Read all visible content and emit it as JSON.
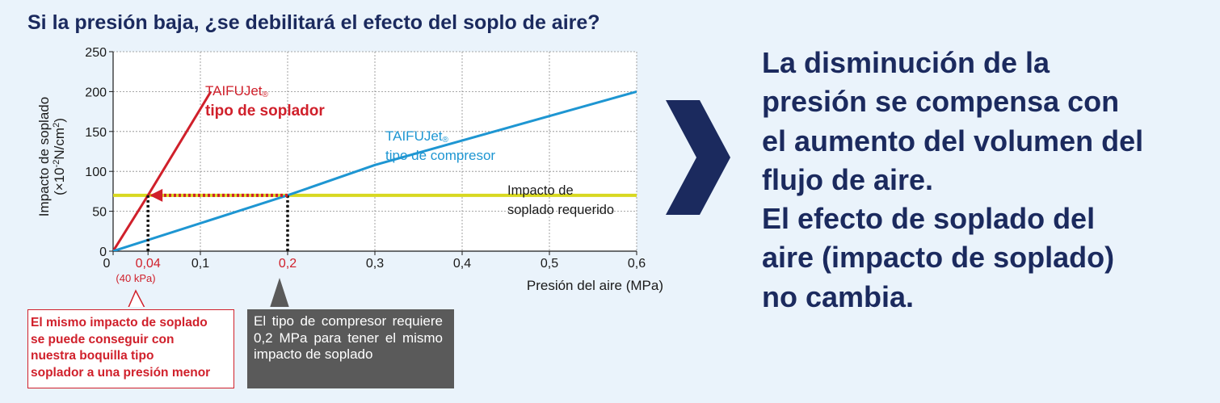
{
  "title": "Si la presión baja, ¿se debilitará el efecto del soplo de aire?",
  "chart_data": {
    "type": "line",
    "xlabel": "Presión del aire (MPa)",
    "ylabel": "Impacto de soplado",
    "ylabel_unit": "(×10⁻²N/cm²)",
    "xlim": [
      0,
      0.6
    ],
    "ylim": [
      0,
      250
    ],
    "x_ticks": [
      "0",
      "0,04",
      "0,1",
      "0,2",
      "0,3",
      "0,4",
      "0,5",
      "0,6"
    ],
    "y_ticks": [
      "0",
      "50",
      "100",
      "150",
      "200",
      "250"
    ],
    "grid": true,
    "series": [
      {
        "name": "TAIFUJet® tipo de soplador",
        "color": "#d0202b",
        "x": [
          0,
          0.04,
          0.112
        ],
        "y": [
          0,
          70,
          200
        ]
      },
      {
        "name": "TAIFUJet® tipo de compresor",
        "color": "#1e96d2",
        "x": [
          0,
          0.2,
          0.3,
          0.6
        ],
        "y": [
          0,
          70,
          108,
          200
        ]
      }
    ],
    "reference_line": {
      "label": "Impacto de soplado requerido",
      "y": 70,
      "color": "#d8d820"
    },
    "annotations": {
      "blower_brand": "TAIFUJet",
      "blower_type": "tipo de soplador",
      "compressor_brand": "TAIFUJet",
      "compressor_type": "tipo de compresor",
      "registered": "®",
      "required_line1": "Impacto de",
      "required_line2": "soplado requerido",
      "kpa_label": "(40 kPa)",
      "ylabel_line1": "Impacto de soplado",
      "ylabel_line2_pre": "(×10",
      "ylabel_line2_sup": "-2",
      "ylabel_line2_mid": "N/cm",
      "ylabel_line2_sup2": "2",
      "ylabel_line2_post": ")"
    }
  },
  "callouts": {
    "blower_lines": [
      "El mismo impacto de soplado",
      "se puede conseguir con",
      "nuestra boquilla tipo",
      "soplador a una presión menor"
    ],
    "compressor_text": "El tipo de compresor requiere 0,2 MPa para tener el mismo impacto de soplado"
  },
  "conclusion": {
    "lines": [
      "La disminución de la",
      "presión se compensa con",
      "el aumento del volumen del",
      "flujo de aire.",
      "El efecto de soplado del",
      "aire (impacto de soplado)",
      "no cambia."
    ]
  },
  "colors": {
    "navy": "#1b2a5e",
    "red": "#d0202b",
    "blue": "#1e96d2",
    "yellow": "#d8d820",
    "gray_box": "#5a5a5a",
    "background": "#eaf3fb"
  },
  "icons": {
    "arrow": "chevron-right-icon"
  }
}
